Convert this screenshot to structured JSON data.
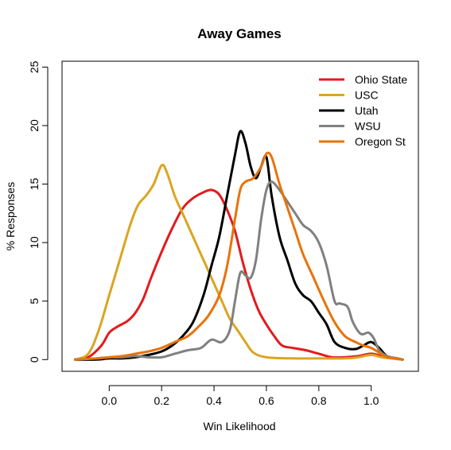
{
  "chart_data": {
    "type": "line",
    "title": "Away Games",
    "xlabel": "Win Likelihood",
    "ylabel": "% Responses",
    "xlim": [
      -0.18,
      1.18
    ],
    "ylim": [
      -1,
      25.5
    ],
    "xticks": [
      "0.0",
      "0.2",
      "0.4",
      "0.6",
      "0.8",
      "1.0"
    ],
    "yticks": [
      "0",
      "5",
      "10",
      "15",
      "20",
      "25"
    ],
    "legend_position": "top-right",
    "grid": false,
    "series": [
      {
        "name": "Ohio State",
        "color": "#e31a1c",
        "points": [
          [
            -0.13,
            0.0
          ],
          [
            -0.08,
            0.2
          ],
          [
            -0.03,
            1.2
          ],
          [
            0.0,
            2.3
          ],
          [
            0.03,
            2.8
          ],
          [
            0.07,
            3.3
          ],
          [
            0.1,
            4.0
          ],
          [
            0.13,
            5.2
          ],
          [
            0.16,
            7.0
          ],
          [
            0.2,
            9.2
          ],
          [
            0.24,
            11.2
          ],
          [
            0.28,
            12.9
          ],
          [
            0.32,
            13.8
          ],
          [
            0.36,
            14.3
          ],
          [
            0.39,
            14.5
          ],
          [
            0.42,
            14.1
          ],
          [
            0.45,
            12.8
          ],
          [
            0.48,
            11.0
          ],
          [
            0.51,
            8.3
          ],
          [
            0.54,
            6.0
          ],
          [
            0.57,
            4.2
          ],
          [
            0.6,
            3.0
          ],
          [
            0.63,
            2.0
          ],
          [
            0.66,
            1.2
          ],
          [
            0.7,
            1.0
          ],
          [
            0.75,
            0.8
          ],
          [
            0.8,
            0.5
          ],
          [
            0.85,
            0.2
          ],
          [
            0.9,
            0.2
          ],
          [
            0.95,
            0.3
          ],
          [
            1.0,
            0.5
          ],
          [
            1.04,
            0.3
          ],
          [
            1.08,
            0.1
          ],
          [
            1.12,
            0.0
          ]
        ]
      },
      {
        "name": "USC",
        "color": "#daa520",
        "points": [
          [
            -0.13,
            0.0
          ],
          [
            -0.08,
            0.5
          ],
          [
            -0.04,
            2.5
          ],
          [
            0.0,
            5.5
          ],
          [
            0.04,
            8.5
          ],
          [
            0.08,
            11.5
          ],
          [
            0.11,
            13.2
          ],
          [
            0.14,
            14.0
          ],
          [
            0.17,
            15.0
          ],
          [
            0.2,
            16.6
          ],
          [
            0.22,
            16.0
          ],
          [
            0.25,
            14.0
          ],
          [
            0.28,
            12.5
          ],
          [
            0.31,
            11.0
          ],
          [
            0.34,
            9.5
          ],
          [
            0.37,
            8.0
          ],
          [
            0.4,
            6.5
          ],
          [
            0.43,
            5.0
          ],
          [
            0.46,
            3.5
          ],
          [
            0.49,
            2.5
          ],
          [
            0.52,
            1.5
          ],
          [
            0.55,
            0.6
          ],
          [
            0.6,
            0.2
          ],
          [
            0.7,
            0.1
          ],
          [
            0.8,
            0.1
          ],
          [
            0.9,
            0.1
          ],
          [
            0.95,
            0.2
          ],
          [
            1.0,
            0.4
          ],
          [
            1.04,
            0.2
          ],
          [
            1.08,
            0.1
          ],
          [
            1.12,
            0.0
          ]
        ]
      },
      {
        "name": "Utah",
        "color": "#000000",
        "points": [
          [
            -0.13,
            0.0
          ],
          [
            -0.05,
            0.0
          ],
          [
            0.0,
            0.1
          ],
          [
            0.05,
            0.1
          ],
          [
            0.1,
            0.2
          ],
          [
            0.15,
            0.4
          ],
          [
            0.2,
            0.7
          ],
          [
            0.24,
            1.2
          ],
          [
            0.28,
            2.0
          ],
          [
            0.32,
            3.2
          ],
          [
            0.36,
            5.5
          ],
          [
            0.39,
            8.0
          ],
          [
            0.42,
            10.5
          ],
          [
            0.45,
            14.0
          ],
          [
            0.48,
            17.5
          ],
          [
            0.5,
            19.5
          ],
          [
            0.52,
            18.5
          ],
          [
            0.54,
            16.5
          ],
          [
            0.56,
            15.5
          ],
          [
            0.58,
            16.5
          ],
          [
            0.6,
            17.3
          ],
          [
            0.62,
            14.0
          ],
          [
            0.65,
            10.5
          ],
          [
            0.68,
            8.5
          ],
          [
            0.71,
            6.5
          ],
          [
            0.74,
            5.5
          ],
          [
            0.77,
            5.0
          ],
          [
            0.8,
            4.0
          ],
          [
            0.83,
            3.0
          ],
          [
            0.86,
            1.5
          ],
          [
            0.9,
            1.0
          ],
          [
            0.94,
            0.9
          ],
          [
            0.97,
            1.2
          ],
          [
            1.0,
            1.5
          ],
          [
            1.03,
            1.0
          ],
          [
            1.06,
            0.3
          ],
          [
            1.1,
            0.1
          ],
          [
            1.12,
            0.0
          ]
        ]
      },
      {
        "name": "WSU",
        "color": "#808080",
        "points": [
          [
            -0.13,
            0.0
          ],
          [
            -0.05,
            0.1
          ],
          [
            0.0,
            0.2
          ],
          [
            0.05,
            0.2
          ],
          [
            0.1,
            0.3
          ],
          [
            0.15,
            0.2
          ],
          [
            0.2,
            0.2
          ],
          [
            0.25,
            0.5
          ],
          [
            0.3,
            0.8
          ],
          [
            0.35,
            1.0
          ],
          [
            0.39,
            1.7
          ],
          [
            0.43,
            1.5
          ],
          [
            0.46,
            2.5
          ],
          [
            0.48,
            5.0
          ],
          [
            0.5,
            7.4
          ],
          [
            0.52,
            7.2
          ],
          [
            0.54,
            7.0
          ],
          [
            0.56,
            8.5
          ],
          [
            0.58,
            12.0
          ],
          [
            0.6,
            14.5
          ],
          [
            0.62,
            15.2
          ],
          [
            0.65,
            14.5
          ],
          [
            0.68,
            13.5
          ],
          [
            0.71,
            12.5
          ],
          [
            0.74,
            11.5
          ],
          [
            0.77,
            11.0
          ],
          [
            0.8,
            10.0
          ],
          [
            0.83,
            8.0
          ],
          [
            0.86,
            5.0
          ],
          [
            0.88,
            4.8
          ],
          [
            0.91,
            4.5
          ],
          [
            0.93,
            3.2
          ],
          [
            0.96,
            2.2
          ],
          [
            0.99,
            2.3
          ],
          [
            1.01,
            1.8
          ],
          [
            1.03,
            0.8
          ],
          [
            1.06,
            0.3
          ],
          [
            1.1,
            0.1
          ],
          [
            1.12,
            0.0
          ]
        ]
      },
      {
        "name": "Oregon St",
        "color": "#e8730a",
        "points": [
          [
            -0.13,
            0.0
          ],
          [
            -0.05,
            0.1
          ],
          [
            0.0,
            0.2
          ],
          [
            0.05,
            0.3
          ],
          [
            0.1,
            0.5
          ],
          [
            0.15,
            0.7
          ],
          [
            0.2,
            1.0
          ],
          [
            0.25,
            1.5
          ],
          [
            0.3,
            2.0
          ],
          [
            0.34,
            2.8
          ],
          [
            0.38,
            3.8
          ],
          [
            0.42,
            5.5
          ],
          [
            0.45,
            8.0
          ],
          [
            0.48,
            12.0
          ],
          [
            0.5,
            14.5
          ],
          [
            0.52,
            15.2
          ],
          [
            0.55,
            15.5
          ],
          [
            0.58,
            16.5
          ],
          [
            0.6,
            17.6
          ],
          [
            0.62,
            17.3
          ],
          [
            0.65,
            15.0
          ],
          [
            0.68,
            13.0
          ],
          [
            0.71,
            11.0
          ],
          [
            0.74,
            9.0
          ],
          [
            0.78,
            7.0
          ],
          [
            0.82,
            5.0
          ],
          [
            0.86,
            3.2
          ],
          [
            0.9,
            2.0
          ],
          [
            0.94,
            1.5
          ],
          [
            0.97,
            1.2
          ],
          [
            1.0,
            1.0
          ],
          [
            1.03,
            0.6
          ],
          [
            1.06,
            0.2
          ],
          [
            1.1,
            0.1
          ],
          [
            1.12,
            0.0
          ]
        ]
      }
    ]
  }
}
